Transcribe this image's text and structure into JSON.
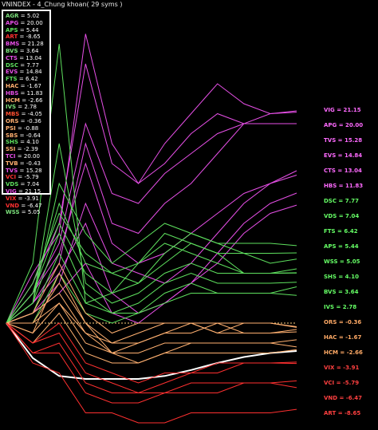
{
  "title": "VNINDEX - 4_Chung khoan( 29 syms )",
  "legend": [
    {
      "sym": "AGR",
      "value": "5.02",
      "color": "#7be07b"
    },
    {
      "sym": "APG",
      "value": "20.00",
      "color": "#e64fe6"
    },
    {
      "sym": "APS",
      "value": "5.44",
      "color": "#5ee05e"
    },
    {
      "sym": "ART",
      "value": "-8.65",
      "color": "#ff3030"
    },
    {
      "sym": "BMS",
      "value": "21.28",
      "color": "#e64fe6"
    },
    {
      "sym": "BVS",
      "value": "3.64",
      "color": "#7be07b"
    },
    {
      "sym": "CTS",
      "value": "13.04",
      "color": "#e64fe6"
    },
    {
      "sym": "DSC",
      "value": "7.77",
      "color": "#5ee05e"
    },
    {
      "sym": "EVS",
      "value": "14.84",
      "color": "#e64fe6"
    },
    {
      "sym": "FTS",
      "value": "6.42",
      "color": "#5ee05e"
    },
    {
      "sym": "HAC",
      "value": "-1.67",
      "color": "#ffb070"
    },
    {
      "sym": "HBS",
      "value": "11.83",
      "color": "#e64fe6"
    },
    {
      "sym": "HCM",
      "value": "-2.66",
      "color": "#ffb070"
    },
    {
      "sym": "IVS",
      "value": "2.78",
      "color": "#7be07b"
    },
    {
      "sym": "MBS",
      "value": "-4.05",
      "color": "#ff5030"
    },
    {
      "sym": "ORS",
      "value": "-0.36",
      "color": "#ffb070"
    },
    {
      "sym": "PSI",
      "value": "-0.88",
      "color": "#ffb070"
    },
    {
      "sym": "SBS",
      "value": "-0.64",
      "color": "#ffb070"
    },
    {
      "sym": "SHS",
      "value": "4.10",
      "color": "#5ee05e"
    },
    {
      "sym": "SSI",
      "value": "-2.39",
      "color": "#ffb070"
    },
    {
      "sym": "TCI",
      "value": "20.00",
      "color": "#e64fe6"
    },
    {
      "sym": "TVB",
      "value": "-0.43",
      "color": "#ffb070"
    },
    {
      "sym": "TVS",
      "value": "15.28",
      "color": "#e64fe6"
    },
    {
      "sym": "VCI",
      "value": "-5.79",
      "color": "#ff3030"
    },
    {
      "sym": "VDS",
      "value": "7.04",
      "color": "#5ee05e"
    },
    {
      "sym": "VIG",
      "value": "21.15",
      "color": "#e64fe6"
    },
    {
      "sym": "VIX",
      "value": "-3.91",
      "color": "#ff3030"
    },
    {
      "sym": "VND",
      "value": "-6.47",
      "color": "#ff3030"
    },
    {
      "sym": "WSS",
      "value": "5.05",
      "color": "#7be07b"
    }
  ],
  "end_labels": [
    {
      "text": "VIG = 21.15",
      "color": "#ff6aff"
    },
    {
      "text": "APG = 20.00",
      "color": "#ff6aff"
    },
    {
      "text": "TVS = 15.28",
      "color": "#ff6aff"
    },
    {
      "text": "EVS = 14.84",
      "color": "#ff6aff"
    },
    {
      "text": "CTS = 13.04",
      "color": "#ff6aff"
    },
    {
      "text": "HBS = 11.83",
      "color": "#ff6aff"
    },
    {
      "text": "DSC = 7.77",
      "color": "#66ff66"
    },
    {
      "text": "VDS = 7.04",
      "color": "#66ff66"
    },
    {
      "text": "FTS = 6.42",
      "color": "#66ff66"
    },
    {
      "text": "APS = 5.44",
      "color": "#66ff66"
    },
    {
      "text": "WSS = 5.05",
      "color": "#66ff66"
    },
    {
      "text": "SHS = 4.10",
      "color": "#66ff66"
    },
    {
      "text": "BVS = 3.64",
      "color": "#66ff66"
    },
    {
      "text": "IVS = 2.78",
      "color": "#66ff66"
    },
    {
      "text": "ORS = -0.36",
      "color": "#ffaa66"
    },
    {
      "text": "HAC = -1.67",
      "color": "#ffaa66"
    },
    {
      "text": "HCM = -2.66",
      "color": "#ffaa66"
    },
    {
      "text": "VIX = -3.91",
      "color": "#ff4040"
    },
    {
      "text": "VCI = -5.79",
      "color": "#ff4040"
    },
    {
      "text": "VND = -6.47",
      "color": "#ff4040"
    },
    {
      "text": "ART = -8.65",
      "color": "#ff4040"
    }
  ],
  "chart_data": {
    "type": "line",
    "title": "VNINDEX - 4_Chung khoan( 29 syms )",
    "ylim": [
      -10,
      30
    ],
    "baseline": 0,
    "x": [
      0,
      1,
      2,
      3,
      4,
      5,
      6,
      7,
      8,
      9,
      10,
      11
    ],
    "colors": {
      "up_strong": "#e64fe6",
      "up": "#5ee05e",
      "flat": "#ffb070",
      "down": "#ff3030",
      "index": "#ffffff"
    },
    "series": [
      {
        "name": "VNINDEX",
        "group": "index",
        "values": [
          0,
          -3.5,
          -5.3,
          -5.6,
          -5.6,
          -5.6,
          -5.3,
          -4.7,
          -4.0,
          -3.4,
          -3.0,
          -2.8
        ]
      },
      {
        "name": "VIG",
        "group": "up_strong",
        "values": [
          0,
          5,
          9,
          29,
          18,
          14,
          18,
          21,
          24,
          22,
          21,
          21.15
        ]
      },
      {
        "name": "APG",
        "group": "up_strong",
        "values": [
          0,
          4,
          10,
          26,
          16,
          14,
          16,
          19,
          21,
          20,
          20,
          20.0
        ]
      },
      {
        "name": "TCI",
        "group": "up_strong",
        "values": [
          0,
          3,
          8,
          20,
          13,
          12,
          15,
          17,
          19,
          20,
          20,
          20.0
        ]
      },
      {
        "name": "BMS",
        "group": "up_strong",
        "values": [
          0,
          2,
          6,
          18,
          10,
          9,
          12,
          14,
          17,
          20,
          21,
          21.28
        ]
      },
      {
        "name": "TVS",
        "group": "up_strong",
        "values": [
          0,
          3,
          7,
          16,
          8,
          6,
          7,
          9,
          11,
          13,
          14,
          15.28
        ]
      },
      {
        "name": "EVS",
        "group": "up_strong",
        "values": [
          0,
          1,
          4,
          12,
          6,
          5,
          4,
          6,
          9,
          12,
          14,
          14.84
        ]
      },
      {
        "name": "CTS",
        "group": "up_strong",
        "values": [
          0,
          2,
          5,
          10,
          3,
          1,
          2,
          4,
          7,
          10,
          12,
          13.04
        ]
      },
      {
        "name": "HBS",
        "group": "up_strong",
        "values": [
          0,
          1,
          3,
          6,
          1,
          0,
          2,
          4,
          6,
          9,
          11,
          11.83
        ]
      },
      {
        "name": "AGR",
        "group": "up",
        "values": [
          0,
          6,
          28,
          2,
          3,
          6,
          8,
          7,
          6,
          5,
          5,
          5.02
        ]
      },
      {
        "name": "APS",
        "group": "up",
        "values": [
          0,
          3,
          10,
          5,
          3,
          4,
          6,
          8,
          7,
          5,
          5,
          5.44
        ]
      },
      {
        "name": "DSC",
        "group": "up",
        "values": [
          0,
          2,
          14,
          9,
          6,
          8,
          10,
          9,
          8,
          8,
          8,
          7.77
        ]
      },
      {
        "name": "VDS",
        "group": "up",
        "values": [
          0,
          3,
          12,
          6,
          5,
          6,
          9,
          8,
          7,
          7,
          7,
          7.04
        ]
      },
      {
        "name": "FTS",
        "group": "up",
        "values": [
          0,
          4,
          11,
          7,
          5,
          4,
          7,
          9,
          8,
          7,
          6,
          6.42
        ]
      },
      {
        "name": "SHS",
        "group": "up",
        "values": [
          0,
          2,
          9,
          3,
          1,
          2,
          4,
          5,
          4,
          4,
          4,
          4.1
        ]
      },
      {
        "name": "BVS",
        "group": "up",
        "values": [
          0,
          1,
          7,
          2,
          1,
          1,
          3,
          4,
          3,
          3,
          3,
          3.64
        ]
      },
      {
        "name": "IVS",
        "group": "up",
        "values": [
          0,
          0,
          5,
          1,
          0,
          1,
          2,
          3,
          3,
          3,
          3,
          2.78
        ]
      },
      {
        "name": "WSS",
        "group": "up",
        "values": [
          0,
          2,
          18,
          4,
          2,
          3,
          5,
          6,
          5,
          5,
          5,
          5.05
        ]
      },
      {
        "name": "ORS",
        "group": "flat",
        "values": [
          0,
          1,
          6,
          1,
          -1,
          0,
          0,
          0,
          -1,
          0,
          0,
          -0.36
        ]
      },
      {
        "name": "PSI",
        "group": "flat",
        "values": [
          0,
          0,
          4,
          0,
          -2,
          -1,
          0,
          0,
          -1,
          -1,
          -1,
          -0.88
        ]
      },
      {
        "name": "SBS",
        "group": "flat",
        "values": [
          0,
          1,
          3,
          -1,
          -2,
          -2,
          -1,
          0,
          0,
          -1,
          -1,
          -0.64
        ]
      },
      {
        "name": "TVB",
        "group": "flat",
        "values": [
          0,
          0,
          2,
          -1,
          -3,
          -2,
          -1,
          -1,
          0,
          0,
          0,
          -0.43
        ]
      },
      {
        "name": "HAC",
        "group": "flat",
        "values": [
          0,
          -1,
          5,
          0,
          -3,
          -3,
          -2,
          -2,
          -2,
          -2,
          -2,
          -1.67
        ]
      },
      {
        "name": "HCM",
        "group": "flat",
        "values": [
          0,
          -2,
          1,
          -3,
          -4,
          -4,
          -3,
          -3,
          -3,
          -3,
          -3,
          -2.66
        ]
      },
      {
        "name": "SSI",
        "group": "flat",
        "values": [
          0,
          -1,
          2,
          -2,
          -3,
          -4,
          -3,
          -2,
          -2,
          -2,
          -2,
          -2.39
        ]
      },
      {
        "name": "VIX",
        "group": "down",
        "values": [
          0,
          -2,
          0,
          -4,
          -5,
          -6,
          -5,
          -5,
          -4,
          -4,
          -4,
          -3.91
        ]
      },
      {
        "name": "MBS",
        "group": "down",
        "values": [
          0,
          -2,
          -1,
          -5,
          -6,
          -7,
          -6,
          -5,
          -5,
          -4,
          -4,
          -4.05
        ]
      },
      {
        "name": "VCI",
        "group": "down",
        "values": [
          0,
          -3,
          -2,
          -6,
          -7,
          -7,
          -7,
          -6,
          -6,
          -6,
          -6,
          -5.79
        ]
      },
      {
        "name": "VND",
        "group": "down",
        "values": [
          0,
          -3,
          -3,
          -7,
          -8,
          -8,
          -7,
          -7,
          -7,
          -6,
          -6,
          -6.47
        ]
      },
      {
        "name": "ART",
        "group": "down",
        "values": [
          0,
          -4,
          -5,
          -9,
          -9,
          -10,
          -10,
          -9,
          -9,
          -9,
          -9,
          -8.65
        ]
      }
    ]
  }
}
